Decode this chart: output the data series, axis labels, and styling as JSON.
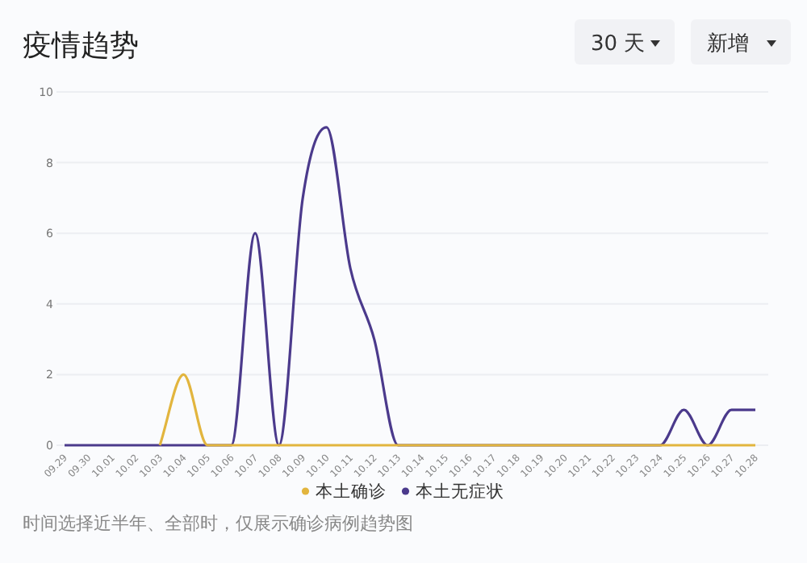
{
  "chart_data": {
    "type": "line",
    "title": "疫情趋势",
    "categories": [
      "09.29",
      "09.30",
      "10.01",
      "10.02",
      "10.03",
      "10.04",
      "10.05",
      "10.06",
      "10.07",
      "10.08",
      "10.09",
      "10.10",
      "10.11",
      "10.12",
      "10.13",
      "10.14",
      "10.15",
      "10.16",
      "10.17",
      "10.18",
      "10.19",
      "10.20",
      "10.21",
      "10.22",
      "10.23",
      "10.24",
      "10.25",
      "10.26",
      "10.27",
      "10.28"
    ],
    "series": [
      {
        "name": "本土确诊",
        "color": "#e2b53e",
        "values": [
          null,
          null,
          null,
          null,
          0,
          2,
          0,
          0,
          0,
          0,
          0,
          0,
          0,
          0,
          0,
          0,
          0,
          0,
          0,
          0,
          0,
          0,
          0,
          0,
          0,
          0,
          0,
          0,
          0,
          0
        ]
      },
      {
        "name": "本土无症状",
        "color": "#4b3a8c",
        "values": [
          0,
          0,
          0,
          0,
          0,
          0,
          0,
          0,
          6,
          0,
          7,
          9,
          5,
          3,
          0,
          0,
          0,
          0,
          0,
          0,
          0,
          0,
          0,
          0,
          0,
          0,
          1,
          0,
          1,
          1
        ]
      }
    ],
    "ylim": [
      0,
      10
    ],
    "yticks": [
      0,
      2,
      4,
      6,
      8,
      10
    ],
    "grid": "y",
    "legend": "bottom",
    "marker": "none",
    "line_style": "solid",
    "annotations": [
      "时间选择近半年、全部时，仅展示确诊病例趋势图",
      "30 天",
      "新增"
    ]
  }
}
